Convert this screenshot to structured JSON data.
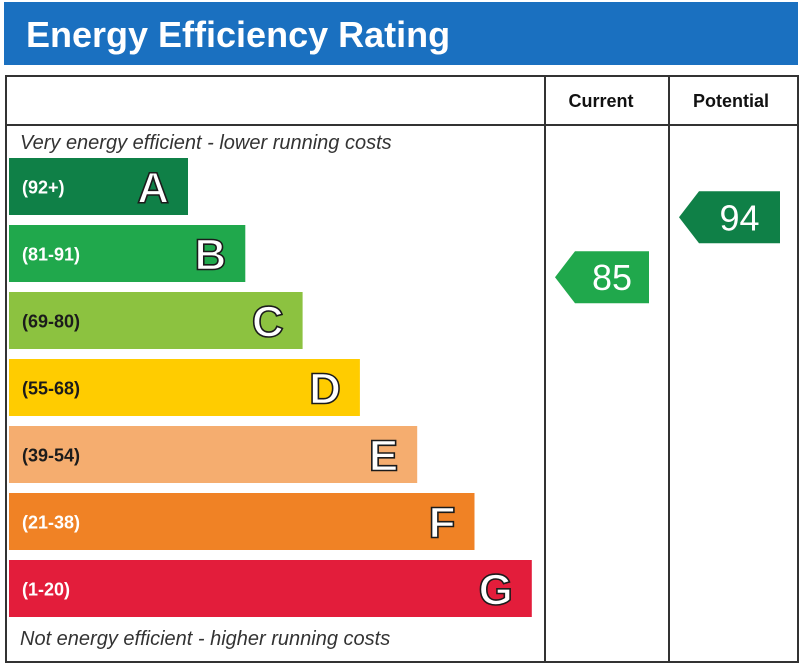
{
  "header": {
    "title": "Energy Efficiency Rating",
    "bg": "#1a70c0"
  },
  "columns": {
    "current": "Current",
    "potential": "Potential"
  },
  "captions": {
    "top": "Very energy efficient - lower running costs",
    "bottom": "Not energy efficient - higher running costs"
  },
  "chart_data": {
    "type": "bar",
    "title": "Energy Efficiency Rating",
    "categories": [
      "A",
      "B",
      "C",
      "D",
      "E",
      "F",
      "G"
    ],
    "bands": [
      {
        "letter": "A",
        "range": "(92+)",
        "min": 92,
        "max": 100,
        "color": "#0f8047"
      },
      {
        "letter": "B",
        "range": "(81-91)",
        "min": 81,
        "max": 91,
        "color": "#20a84c"
      },
      {
        "letter": "C",
        "range": "(69-80)",
        "min": 69,
        "max": 80,
        "color": "#8cc240"
      },
      {
        "letter": "D",
        "range": "(55-68)",
        "min": 55,
        "max": 68,
        "color": "#ffcc00"
      },
      {
        "letter": "E",
        "range": "(39-54)",
        "min": 39,
        "max": 54,
        "color": "#f5ad6f"
      },
      {
        "letter": "F",
        "range": "(21-38)",
        "min": 21,
        "max": 38,
        "color": "#f08225"
      },
      {
        "letter": "G",
        "range": "(1-20)",
        "min": 1,
        "max": 20,
        "color": "#e31d3b"
      }
    ],
    "ratings": {
      "current": {
        "value": 85,
        "band": "B"
      },
      "potential": {
        "value": 94,
        "band": "A"
      }
    }
  }
}
